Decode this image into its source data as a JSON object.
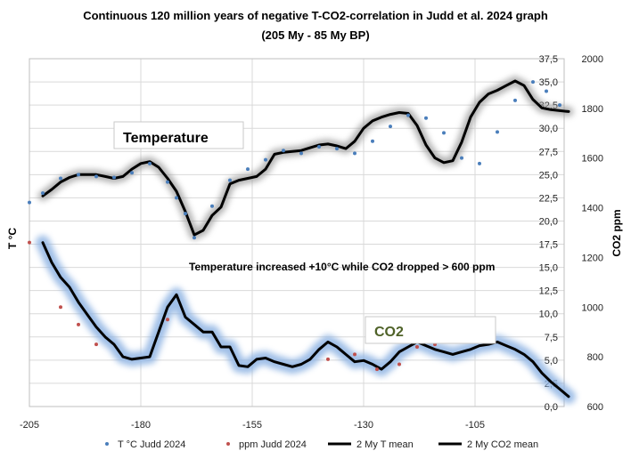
{
  "chart_data": {
    "type": "line",
    "title_line1": "Continuous 120 million years of negative T-CO2-correlation in Judd et al. 2024 graph",
    "title_line2": "(205 My - 85 My BP)",
    "ylabel_left": "T °C",
    "ylabel_right": "CO2 ppm",
    "xlim": [
      -205,
      -85
    ],
    "ylim_left": [
      0,
      37.5
    ],
    "ylim_right": [
      600,
      2000
    ],
    "x_ticks": [
      "-205",
      "-180",
      "-155",
      "-130",
      "-105"
    ],
    "x_tick_values": [
      -205,
      -180,
      -155,
      -130,
      -105
    ],
    "y_ticks_left": [
      "0,0",
      "2,5",
      "5,0",
      "7,5",
      "10,0",
      "12,5",
      "15,0",
      "17,5",
      "20,0",
      "22,5",
      "25,0",
      "27,5",
      "30,0",
      "32,5",
      "35,0",
      "37,5"
    ],
    "y_tick_values_left": [
      0,
      2.5,
      5,
      7.5,
      10,
      12.5,
      15,
      17.5,
      20,
      22.5,
      25,
      27.5,
      30,
      32.5,
      35,
      37.5
    ],
    "y_ticks_right": [
      "600",
      "800",
      "1000",
      "1200",
      "1400",
      "1600",
      "1800",
      "2000"
    ],
    "y_tick_values_right": [
      600,
      800,
      1000,
      1200,
      1400,
      1600,
      1800,
      2000
    ],
    "annotations": {
      "temperature_label": "Temperature",
      "co2_label": "CO2",
      "note": "Temperature increased +10°C while CO2 dropped > 600  ppm"
    },
    "legend": [
      "T °C Judd 2024",
      "ppm Judd 2024",
      "2 My T mean",
      "2 My CO2 mean"
    ],
    "series": [
      {
        "name": "T °C Judd 2024",
        "axis": "left",
        "kind": "points",
        "color": "#4a7ebb",
        "x": [
          -205,
          -202,
          -198,
          -194,
          -190,
          -186,
          -182,
          -178,
          -174,
          -172,
          -170,
          -168,
          -164,
          -160,
          -156,
          -152,
          -148,
          -144,
          -140,
          -136,
          -132,
          -128,
          -124,
          -120,
          -116,
          -112,
          -108,
          -104,
          -100,
          -96,
          -92,
          -89,
          -86
        ],
        "y": [
          22,
          23,
          24.6,
          25,
          24.8,
          24.7,
          25.2,
          26.2,
          24.2,
          22.5,
          20.8,
          18.2,
          21.6,
          24.4,
          25.6,
          26.6,
          27.6,
          27.3,
          28,
          27.8,
          27.3,
          28.6,
          30.2,
          31.4,
          31.1,
          29.5,
          26.8,
          26.2,
          29.6,
          33,
          35,
          34,
          32.5
        ]
      },
      {
        "name": "ppm Judd 2024",
        "axis": "right",
        "kind": "points",
        "color": "#c0504d",
        "x": [
          -205,
          -198,
          -194,
          -190,
          -174,
          -138,
          -132,
          -127,
          -122,
          -118,
          -114
        ],
        "y": [
          1260,
          1000,
          930,
          850,
          950,
          790,
          810,
          750,
          770,
          840,
          850
        ]
      },
      {
        "name": "2 My T mean",
        "axis": "left",
        "kind": "line",
        "color": "#000000",
        "x": [
          -202,
          -200,
          -198,
          -196,
          -194,
          -192,
          -190,
          -188,
          -186,
          -184,
          -182,
          -180,
          -178,
          -176,
          -174,
          -172,
          -170,
          -168,
          -166,
          -164,
          -162,
          -160,
          -158,
          -156,
          -154,
          -152,
          -150,
          -148,
          -146,
          -144,
          -142,
          -140,
          -138,
          -136,
          -134,
          -132,
          -130,
          -128,
          -126,
          -124,
          -122,
          -120,
          -118,
          -116,
          -114,
          -112,
          -110,
          -108,
          -106,
          -104,
          -102,
          -100,
          -98,
          -96,
          -94,
          -92,
          -90,
          -88,
          -86,
          -84
        ],
        "y": [
          22.7,
          23.4,
          24.2,
          24.7,
          25,
          25,
          25,
          24.8,
          24.6,
          24.8,
          25.6,
          26.2,
          26.4,
          25.8,
          24.6,
          23.2,
          21,
          18.5,
          19,
          20.6,
          21.5,
          24,
          24.4,
          24.6,
          24.8,
          25.6,
          27.2,
          27.4,
          27.5,
          27.6,
          27.9,
          28.2,
          28.3,
          28.1,
          27.8,
          28.6,
          30,
          30.8,
          31.2,
          31.5,
          31.7,
          31.6,
          30.3,
          28.2,
          26.8,
          26.3,
          26.5,
          28.5,
          31.2,
          32.8,
          33.7,
          34.1,
          34.6,
          35.1,
          34.6,
          33.1,
          32.2,
          32,
          31.9,
          31.8
        ]
      },
      {
        "name": "2 My CO2 mean",
        "axis": "right",
        "kind": "line",
        "color": "#000000",
        "x": [
          -202,
          -200,
          -198,
          -196,
          -194,
          -192,
          -190,
          -188,
          -186,
          -184,
          -182,
          -180,
          -178,
          -176,
          -174,
          -172,
          -170,
          -168,
          -166,
          -164,
          -162,
          -160,
          -158,
          -156,
          -154,
          -152,
          -150,
          -148,
          -146,
          -144,
          -142,
          -140,
          -138,
          -136,
          -134,
          -132,
          -130,
          -128,
          -126,
          -124,
          -122,
          -120,
          -118,
          -116,
          -114,
          -112,
          -110,
          -108,
          -106,
          -104,
          -102,
          -100,
          -98,
          -96,
          -94,
          -92,
          -90,
          -88,
          -86,
          -84
        ],
        "y": [
          1260,
          1180,
          1120,
          1080,
          1020,
          970,
          920,
          880,
          850,
          800,
          790,
          795,
          800,
          900,
          1000,
          1050,
          960,
          930,
          900,
          900,
          840,
          840,
          765,
          760,
          790,
          795,
          780,
          770,
          760,
          770,
          790,
          830,
          860,
          840,
          810,
          780,
          785,
          770,
          750,
          780,
          820,
          840,
          860,
          845,
          830,
          820,
          810,
          820,
          830,
          845,
          850,
          860,
          845,
          830,
          810,
          780,
          735,
          700,
          670,
          640
        ]
      }
    ]
  }
}
